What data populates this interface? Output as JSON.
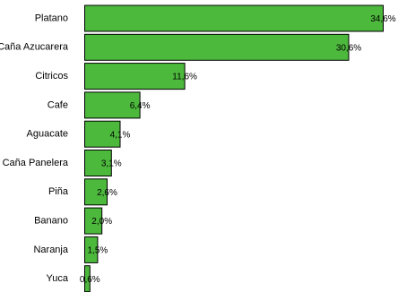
{
  "chart_data": {
    "type": "bar",
    "orientation": "horizontal",
    "categories": [
      "Platano",
      "Caña Azucarera",
      "Citricos",
      "Cafe",
      "Aguacate",
      "Caña Panelera",
      "Piña",
      "Banano",
      "Naranja",
      "Yuca"
    ],
    "values": [
      34.6,
      30.6,
      11.6,
      6.4,
      4.1,
      3.1,
      2.6,
      2.0,
      1.5,
      0.6
    ],
    "value_labels": [
      "34,6%",
      "30,6%",
      "11,6%",
      "6,4%",
      "4,1%",
      "3,1%",
      "2,6%",
      "2,0%",
      "1,5%",
      "0,6%"
    ],
    "xlim": [
      0,
      34.6
    ],
    "bar_color": "#4cb83c",
    "border_color": "#000000",
    "grid": false,
    "legend": "none",
    "title": "",
    "xlabel": "",
    "ylabel": ""
  }
}
